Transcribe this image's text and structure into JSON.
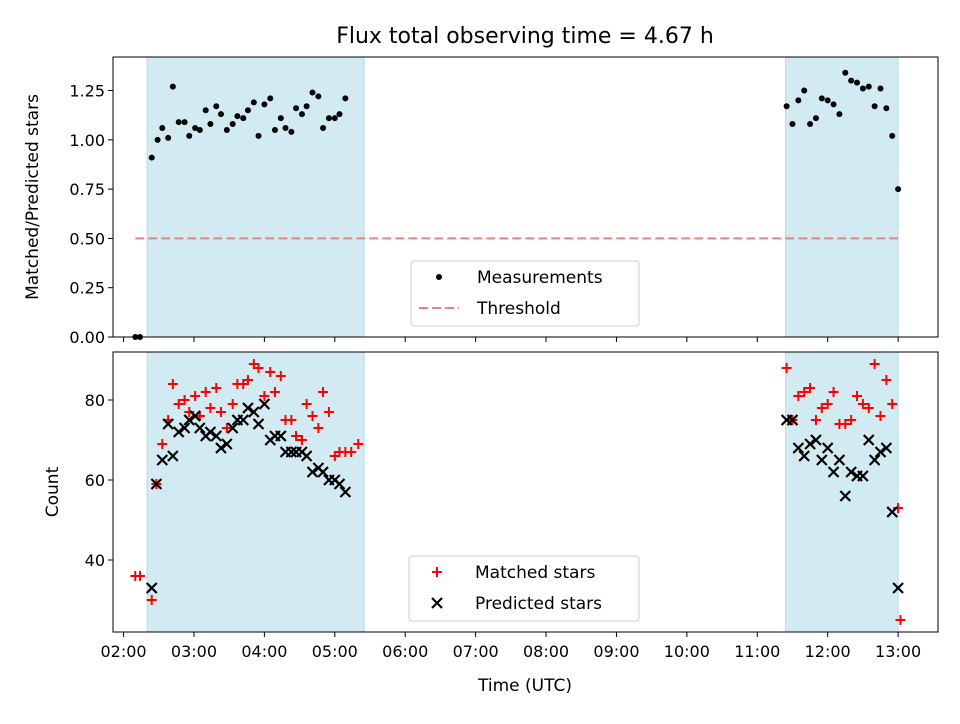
{
  "figure": {
    "title": "Flux total observing time = 4.67 h",
    "xlabel": "Time (UTC)",
    "x_tick_labels": [
      "02:00",
      "03:00",
      "04:00",
      "05:00",
      "06:00",
      "07:00",
      "08:00",
      "09:00",
      "10:00",
      "11:00",
      "12:00",
      "13:00"
    ]
  },
  "chart_data": [
    {
      "type": "scatter",
      "ylabel": "Matched/Predicted stars",
      "xlim": [
        "01:51",
        "13:34"
      ],
      "ylim": [
        0,
        1.42
      ],
      "y_tick_labels": [
        "0.00",
        "0.25",
        "0.50",
        "0.75",
        "1.00",
        "1.25"
      ],
      "y_ticks": [
        0,
        0.25,
        0.5,
        0.75,
        1.0,
        1.25
      ],
      "shaded_spans": [
        {
          "start": "02:20",
          "end": "05:25",
          "color": "#add8e6"
        },
        {
          "start": "11:24",
          "end": "13:00",
          "color": "#add8e6"
        }
      ],
      "threshold": {
        "value": 0.5,
        "x_start": "02:10",
        "x_end": "13:00",
        "color": "#f08080"
      },
      "legend": {
        "placement": "lower-center",
        "entries": [
          {
            "label": "Measurements",
            "marker": "dot"
          },
          {
            "label": "Threshold",
            "marker": "dashed-line"
          }
        ]
      },
      "series": [
        {
          "name": "Measurements",
          "color": "#000000",
          "points": [
            [
              "02:10",
              0.0
            ],
            [
              "02:14",
              0.0
            ],
            [
              "02:24",
              0.91
            ],
            [
              "02:29",
              1.0
            ],
            [
              "02:33",
              1.06
            ],
            [
              "02:38",
              1.01
            ],
            [
              "02:42",
              1.27
            ],
            [
              "02:47",
              1.09
            ],
            [
              "02:52",
              1.09
            ],
            [
              "02:56",
              1.02
            ],
            [
              "03:01",
              1.06
            ],
            [
              "03:05",
              1.05
            ],
            [
              "03:10",
              1.15
            ],
            [
              "03:14",
              1.08
            ],
            [
              "03:19",
              1.17
            ],
            [
              "03:23",
              1.13
            ],
            [
              "03:28",
              1.05
            ],
            [
              "03:33",
              1.08
            ],
            [
              "03:37",
              1.12
            ],
            [
              "03:42",
              1.11
            ],
            [
              "03:46",
              1.15
            ],
            [
              "03:51",
              1.19
            ],
            [
              "03:55",
              1.02
            ],
            [
              "04:00",
              1.18
            ],
            [
              "04:05",
              1.21
            ],
            [
              "04:09",
              1.05
            ],
            [
              "04:14",
              1.11
            ],
            [
              "04:18",
              1.06
            ],
            [
              "04:23",
              1.04
            ],
            [
              "04:27",
              1.16
            ],
            [
              "04:32",
              1.13
            ],
            [
              "04:36",
              1.17
            ],
            [
              "04:41",
              1.24
            ],
            [
              "04:46",
              1.22
            ],
            [
              "04:50",
              1.06
            ],
            [
              "04:55",
              1.11
            ],
            [
              "05:00",
              1.11
            ],
            [
              "05:04",
              1.13
            ],
            [
              "05:09",
              1.21
            ],
            [
              "11:25",
              1.17
            ],
            [
              "11:30",
              1.08
            ],
            [
              "11:35",
              1.2
            ],
            [
              "11:40",
              1.25
            ],
            [
              "11:45",
              1.08
            ],
            [
              "11:50",
              1.11
            ],
            [
              "11:55",
              1.21
            ],
            [
              "12:00",
              1.2
            ],
            [
              "12:05",
              1.18
            ],
            [
              "12:10",
              1.13
            ],
            [
              "12:15",
              1.34
            ],
            [
              "12:20",
              1.3
            ],
            [
              "12:25",
              1.29
            ],
            [
              "12:30",
              1.26
            ],
            [
              "12:35",
              1.27
            ],
            [
              "12:40",
              1.17
            ],
            [
              "12:45",
              1.26
            ],
            [
              "12:50",
              1.16
            ],
            [
              "12:55",
              1.02
            ],
            [
              "13:00",
              0.75
            ]
          ]
        }
      ]
    },
    {
      "type": "scatter",
      "ylabel": "Count",
      "xlim": [
        "01:51",
        "13:34"
      ],
      "ylim": [
        22,
        92
      ],
      "y_tick_labels": [
        "40",
        "60",
        "80"
      ],
      "y_ticks": [
        40,
        60,
        80
      ],
      "shaded_spans": [
        {
          "start": "02:20",
          "end": "05:25",
          "color": "#add8e6"
        },
        {
          "start": "11:24",
          "end": "13:00",
          "color": "#add8e6"
        }
      ],
      "legend": {
        "placement": "lower-center",
        "entries": [
          {
            "label": "Matched stars",
            "marker": "plus"
          },
          {
            "label": "Predicted stars",
            "marker": "x"
          }
        ]
      },
      "series": [
        {
          "name": "Matched stars",
          "color": "#ff0000",
          "marker": "plus",
          "points": [
            [
              "02:10",
              36
            ],
            [
              "02:14",
              36
            ],
            [
              "02:24",
              30
            ],
            [
              "02:28",
              59
            ],
            [
              "02:33",
              69
            ],
            [
              "02:38",
              75
            ],
            [
              "02:42",
              84
            ],
            [
              "02:47",
              79
            ],
            [
              "02:52",
              80
            ],
            [
              "02:56",
              77
            ],
            [
              "03:01",
              81
            ],
            [
              "03:05",
              76
            ],
            [
              "03:10",
              82
            ],
            [
              "03:14",
              78
            ],
            [
              "03:19",
              83
            ],
            [
              "03:23",
              77
            ],
            [
              "03:28",
              73
            ],
            [
              "03:33",
              79
            ],
            [
              "03:37",
              84
            ],
            [
              "03:42",
              84
            ],
            [
              "03:46",
              85
            ],
            [
              "03:51",
              89
            ],
            [
              "03:55",
              88
            ],
            [
              "04:00",
              81
            ],
            [
              "04:05",
              87
            ],
            [
              "04:09",
              82
            ],
            [
              "04:14",
              86
            ],
            [
              "04:18",
              75
            ],
            [
              "04:23",
              75
            ],
            [
              "04:27",
              71
            ],
            [
              "04:32",
              70
            ],
            [
              "04:36",
              79
            ],
            [
              "04:41",
              76
            ],
            [
              "04:46",
              73
            ],
            [
              "04:50",
              82
            ],
            [
              "04:55",
              77
            ],
            [
              "05:00",
              66
            ],
            [
              "05:04",
              67
            ],
            [
              "05:09",
              67
            ],
            [
              "05:14",
              67
            ],
            [
              "05:20",
              69
            ],
            [
              "11:25",
              88
            ],
            [
              "11:30",
              75
            ],
            [
              "11:35",
              81
            ],
            [
              "11:40",
              82
            ],
            [
              "11:45",
              83
            ],
            [
              "11:50",
              75
            ],
            [
              "11:55",
              78
            ],
            [
              "12:00",
              79
            ],
            [
              "12:05",
              82
            ],
            [
              "12:10",
              74
            ],
            [
              "12:15",
              74
            ],
            [
              "12:20",
              75
            ],
            [
              "12:25",
              81
            ],
            [
              "12:30",
              79
            ],
            [
              "12:35",
              78
            ],
            [
              "12:40",
              89
            ],
            [
              "12:45",
              76
            ],
            [
              "12:50",
              85
            ],
            [
              "12:55",
              79
            ],
            [
              "13:00",
              53
            ],
            [
              "13:02",
              25
            ]
          ]
        },
        {
          "name": "Predicted stars",
          "color": "#000000",
          "marker": "x",
          "points": [
            [
              "02:24",
              33
            ],
            [
              "02:28",
              59
            ],
            [
              "02:33",
              65
            ],
            [
              "02:38",
              74
            ],
            [
              "02:42",
              66
            ],
            [
              "02:47",
              72
            ],
            [
              "02:52",
              73
            ],
            [
              "02:56",
              75
            ],
            [
              "03:01",
              76
            ],
            [
              "03:05",
              73
            ],
            [
              "03:10",
              71
            ],
            [
              "03:14",
              72
            ],
            [
              "03:19",
              71
            ],
            [
              "03:23",
              68
            ],
            [
              "03:28",
              69
            ],
            [
              "03:33",
              73
            ],
            [
              "03:37",
              75
            ],
            [
              "03:42",
              75
            ],
            [
              "03:46",
              78
            ],
            [
              "03:51",
              77
            ],
            [
              "03:55",
              74
            ],
            [
              "04:00",
              79
            ],
            [
              "04:05",
              70
            ],
            [
              "04:09",
              71
            ],
            [
              "04:14",
              71
            ],
            [
              "04:18",
              67
            ],
            [
              "04:23",
              67
            ],
            [
              "04:27",
              67
            ],
            [
              "04:32",
              67
            ],
            [
              "04:36",
              66
            ],
            [
              "04:41",
              62
            ],
            [
              "04:46",
              63
            ],
            [
              "04:50",
              62
            ],
            [
              "04:55",
              60
            ],
            [
              "05:00",
              60
            ],
            [
              "05:04",
              59
            ],
            [
              "05:09",
              57
            ],
            [
              "11:25",
              75
            ],
            [
              "11:30",
              75
            ],
            [
              "11:35",
              68
            ],
            [
              "11:40",
              66
            ],
            [
              "11:45",
              69
            ],
            [
              "11:50",
              70
            ],
            [
              "11:55",
              65
            ],
            [
              "12:00",
              68
            ],
            [
              "12:05",
              62
            ],
            [
              "12:10",
              65
            ],
            [
              "12:15",
              56
            ],
            [
              "12:20",
              62
            ],
            [
              "12:25",
              61
            ],
            [
              "12:30",
              61
            ],
            [
              "12:35",
              70
            ],
            [
              "12:40",
              65
            ],
            [
              "12:45",
              67
            ],
            [
              "12:50",
              68
            ],
            [
              "12:55",
              52
            ],
            [
              "13:00",
              33
            ]
          ]
        }
      ]
    }
  ]
}
